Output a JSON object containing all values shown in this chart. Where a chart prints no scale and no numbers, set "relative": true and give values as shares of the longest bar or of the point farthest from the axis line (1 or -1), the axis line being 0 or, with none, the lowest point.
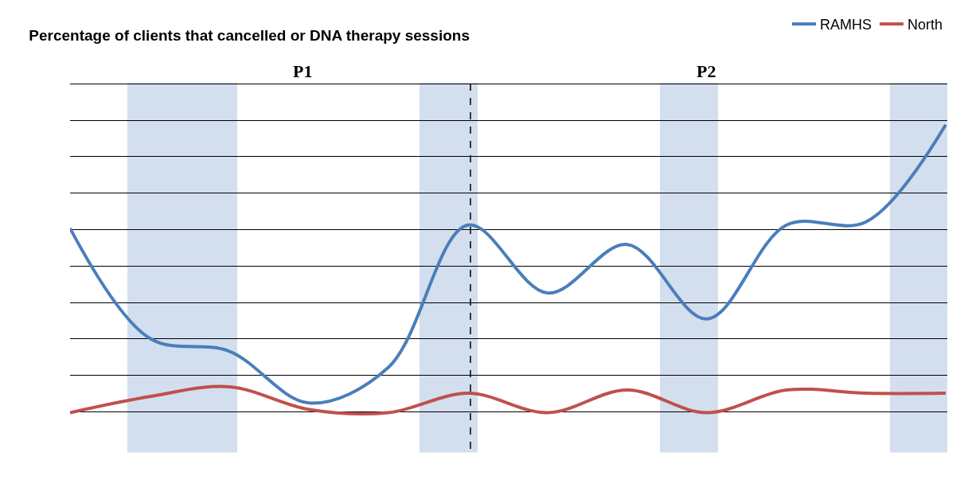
{
  "chart_data": {
    "type": "line",
    "title": "Percentage of clients that cancelled or DNA therapy sessions",
    "relative": true,
    "categories": [
      null,
      null,
      null,
      null,
      null,
      null,
      null,
      null,
      null,
      null,
      null,
      null
    ],
    "series": [
      {
        "name": "RAMHS",
        "color": "#4a7ebb",
        "values": [
          0.68,
          0.34,
          0.3,
          0.14,
          0.25,
          0.69,
          0.48,
          0.63,
          0.4,
          0.69,
          0.7,
          1
        ]
      },
      {
        "name": "North",
        "color": "#c0504d",
        "values": [
          0.11,
          0.16,
          0.19,
          0.12,
          0.11,
          0.17,
          0.11,
          0.18,
          0.11,
          0.18,
          0.17,
          0.17
        ]
      }
    ],
    "annotations": [
      "P1",
      "P2"
    ],
    "grid": "y",
    "legend": "top right",
    "line_style": "solid",
    "marker": "none"
  }
}
